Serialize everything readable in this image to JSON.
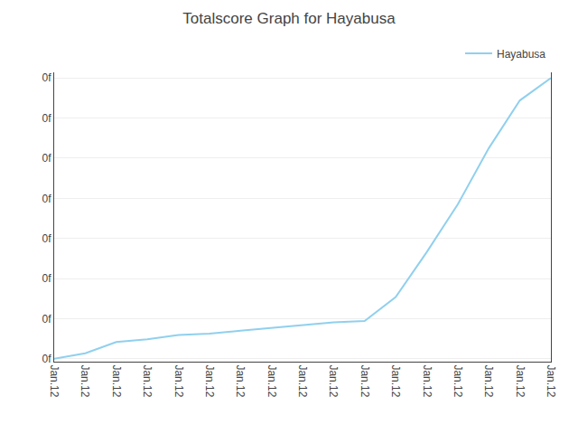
{
  "chart_data": {
    "type": "line",
    "title": "Totalscore Graph for Hayabusa",
    "categories": [
      "Jan.12",
      "Jan.12",
      "Jan.12",
      "Jan.12",
      "Jan.12",
      "Jan.12",
      "Jan.12",
      "Jan.12",
      "Jan.12",
      "Jan.12",
      "Jan.12",
      "Jan.12",
      "Jan.12",
      "Jan.12",
      "Jan.12",
      "Jan.12",
      "Jan.12"
    ],
    "series": [
      {
        "name": "Hayabusa",
        "color": "#90D0EE",
        "values": [
          0,
          0.02,
          0.06,
          0.07,
          0.085,
          0.09,
          0.1,
          0.11,
          0.12,
          0.13,
          0.135,
          0.22,
          0.38,
          0.55,
          0.75,
          0.92,
          1.0
        ]
      }
    ],
    "ylim": [
      -0.01,
      1.02
    ],
    "yticks": [
      {
        "value": 0.0,
        "label": "0f"
      },
      {
        "value": 0.14285714285714285,
        "label": "0f"
      },
      {
        "value": 0.2857142857142857,
        "label": "0f"
      },
      {
        "value": 0.42857142857142855,
        "label": "0f"
      },
      {
        "value": 0.5714285714285714,
        "label": "0f"
      },
      {
        "value": 0.7142857142857142,
        "label": "0f"
      },
      {
        "value": 0.8571428571428571,
        "label": "0f"
      },
      {
        "value": 1.0,
        "label": "0f"
      }
    ],
    "grid": true,
    "legend": "upper right"
  }
}
